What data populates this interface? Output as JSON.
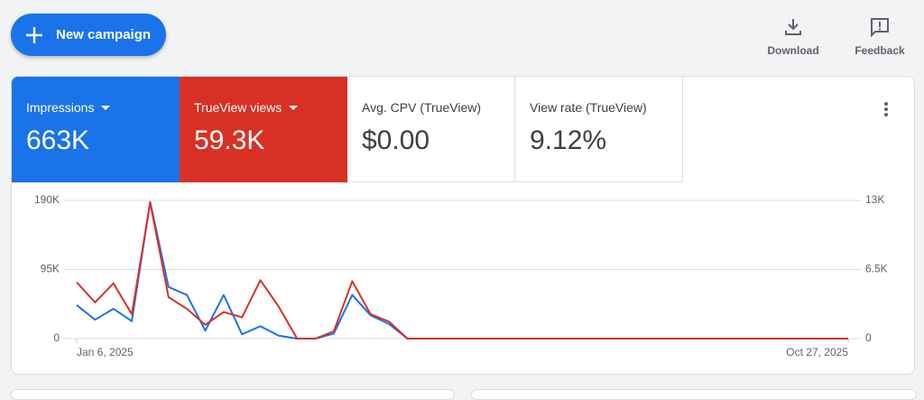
{
  "toolbar": {
    "new_campaign": "New campaign",
    "download": "Download",
    "feedback": "Feedback"
  },
  "metrics": [
    {
      "value": "663K"
    },
    {
      "value": "59.3K"
    },
    {
      "label": "Avg. CPV (TrueView)",
      "value": "$0.00"
    },
    {
      "label": "View rate (TrueView)",
      "value": "9.12%"
    }
  ],
  "chart_data": {
    "type": "line",
    "categories": [
      "Jan 6, 2025",
      null,
      null,
      null,
      null,
      null,
      null,
      null,
      null,
      null,
      null,
      null,
      null,
      null,
      null,
      null,
      null,
      null,
      null,
      null,
      null,
      null,
      null,
      null,
      null,
      null,
      null,
      null,
      null,
      null,
      null,
      null,
      null,
      null,
      null,
      null,
      null,
      null,
      null,
      null,
      null,
      null,
      "Oct 27, 2025"
    ],
    "series": [
      {
        "name": "Impressions",
        "color": "#1a73e8",
        "values": [
          46000,
          26000,
          41000,
          24000,
          188000,
          71000,
          60000,
          11000,
          60000,
          6000,
          17000,
          4000,
          0,
          0,
          7000,
          60000,
          32000,
          20000,
          0,
          0,
          0,
          0,
          0,
          0,
          0,
          0,
          0,
          0,
          0,
          0,
          0,
          0,
          0,
          0,
          0,
          0,
          0,
          0,
          0,
          0,
          0,
          0,
          0
        ]
      },
      {
        "name": "TrueView views",
        "color": "#d93025",
        "axis": "y2",
        "values": [
          5300,
          3400,
          5200,
          2300,
          12800,
          3900,
          2800,
          1300,
          2500,
          2000,
          5500,
          3000,
          0,
          0,
          700,
          5400,
          2300,
          1600,
          0,
          0,
          0,
          0,
          0,
          0,
          0,
          0,
          0,
          0,
          0,
          0,
          0,
          0,
          0,
          0,
          0,
          0,
          0,
          0,
          0,
          0,
          0,
          0,
          0
        ]
      }
    ],
    "ylim": [
      0,
      190000
    ],
    "yticks": [
      0,
      {
        "value": 95000,
        "label": "95K"
      },
      {
        "value": 190000,
        "label": "190K"
      }
    ],
    "y2lim": [
      0,
      13000
    ],
    "y2ticks": [
      0,
      {
        "value": 6500,
        "label": "6.5K"
      },
      {
        "value": 13000,
        "label": "13K"
      }
    ],
    "grid": true
  }
}
